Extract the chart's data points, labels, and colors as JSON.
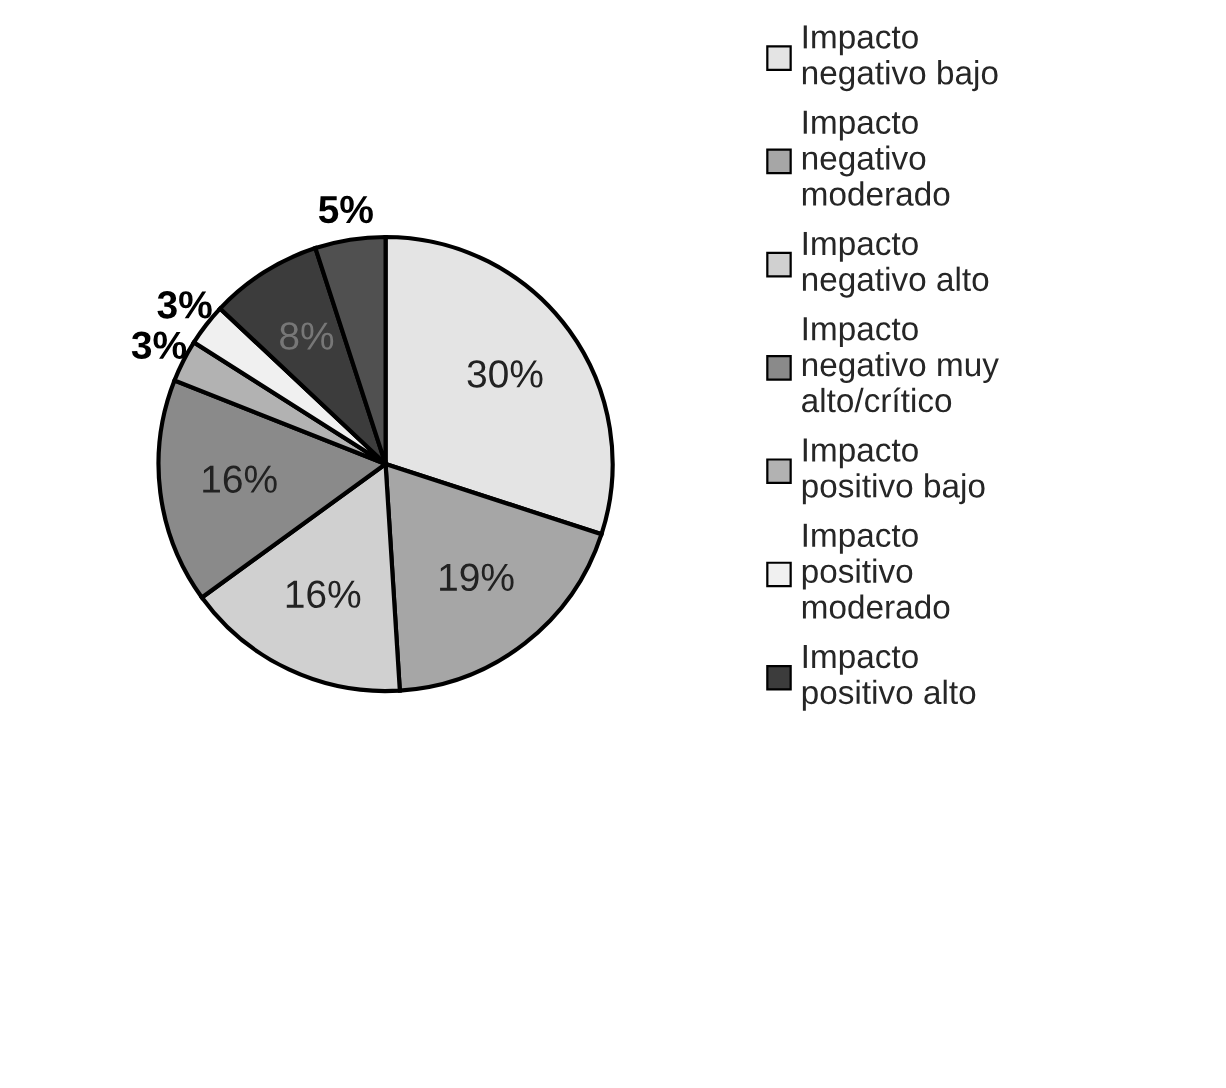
{
  "chart_data": {
    "type": "pie",
    "categories": [
      "Impacto\nnegativo bajo",
      "Impacto\nnegativo\nmoderado",
      "Impacto\nnegativo alto",
      "Impacto\nnegativo muy\nalto/crítico",
      "Impacto\npositivo bajo",
      "Impacto\npositivo\nmoderado",
      "Impacto\npositivo alto",
      null
    ],
    "values": [
      30,
      19,
      16,
      16,
      3,
      3,
      8,
      5
    ],
    "value_labels": [
      "30%",
      "19%",
      "16%",
      "16%",
      "3%",
      "3%",
      "8%",
      "5%"
    ],
    "colors": [
      "#e4e4e4",
      "#a6a6a6",
      "#d0d0d0",
      "#8a8a8a",
      "#b2b2b2",
      "#f0f0f0",
      "#3c3c3c",
      "#505050"
    ],
    "legend": "right"
  }
}
